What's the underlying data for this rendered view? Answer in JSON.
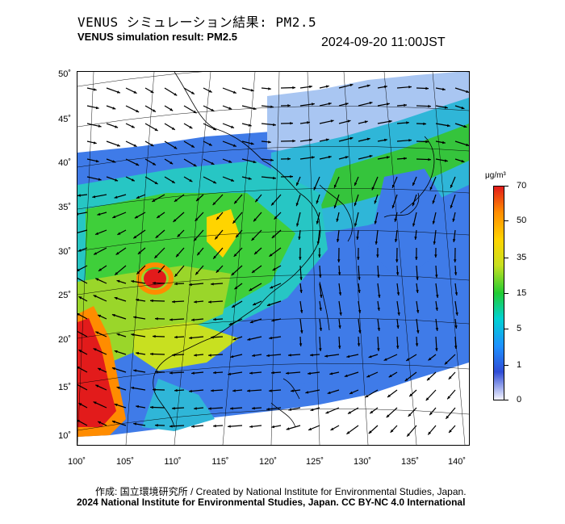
{
  "header": {
    "title_jp": "VENUS シミュレーション結果: PM2.5",
    "title_en": "VENUS simulation result: PM2.5",
    "timestamp": "2024-09-20 11:00JST"
  },
  "map": {
    "lat_labels": [
      "50˚",
      "45˚",
      "40˚",
      "35˚",
      "30˚",
      "25˚",
      "20˚",
      "15˚",
      "10˚"
    ],
    "lon_labels": [
      "100˚",
      "105˚",
      "110˚",
      "115˚",
      "120˚",
      "125˚",
      "130˚",
      "135˚",
      "140˚"
    ]
  },
  "colorbar": {
    "unit": "μg/m³",
    "labels": [
      "70",
      "50",
      "35",
      "15",
      "5",
      "1",
      "0"
    ],
    "colors": [
      "#f4f4ff",
      "#2f4cd6",
      "#1e90ff",
      "#00d2d2",
      "#22cc33",
      "#c8e020",
      "#ffd400",
      "#ff8c00",
      "#e21b1b"
    ]
  },
  "footer": {
    "credit_line1": "作成: 国立環境研究所 / Created by National Institute for Environmental Studies, Japan.",
    "credit_line2": "2024 National Institute for Environmental Studies, Japan. CC BY-NC 4.0 International"
  }
}
